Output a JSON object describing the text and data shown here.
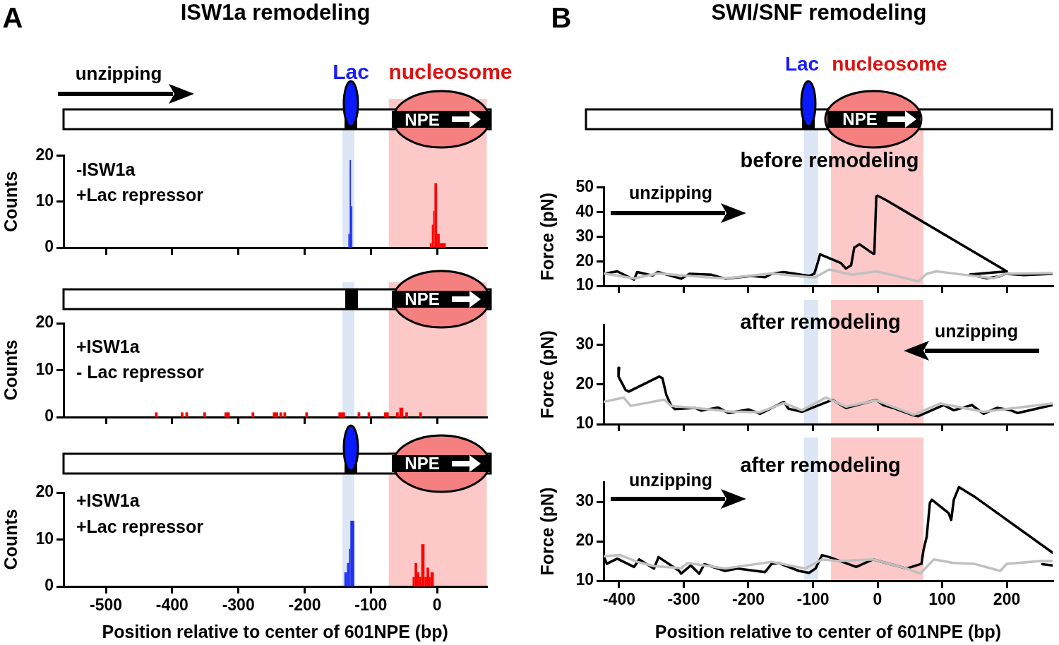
{
  "chart_data": [
    {
      "type": "histogram",
      "title": "ISW1a remodeling",
      "ylabel": "Counts",
      "annotations": [
        "A",
        "unzipping",
        "Lac",
        "nucleosome",
        "NPE",
        "-ISW1a",
        "+Lac repressor"
      ],
      "xlim": [
        -564,
        75
      ],
      "xticks": [
        -500,
        -400,
        -300,
        -200,
        -100,
        0
      ],
      "ylim": [
        0,
        20
      ],
      "yticks": [
        0,
        10,
        20
      ],
      "tick_labels": "y",
      "bands": [
        {
          "axis": "x",
          "from": -143,
          "to": -125,
          "color": "#dce6f4"
        },
        {
          "axis": "x",
          "from": -73,
          "to": 75,
          "color": "#fcc8c8"
        }
      ],
      "bins": [
        -134,
        -132,
        -130,
        -128,
        -11,
        -8,
        -6,
        -4,
        0,
        4,
        13
      ],
      "series": [
        {
          "color": "#2030f0",
          "values": [
            3,
            19,
            9,
            0,
            0,
            0,
            0,
            0,
            0,
            0
          ]
        },
        {
          "color": "#ff0000",
          "values": [
            0,
            0,
            0,
            0,
            1,
            5,
            8,
            14,
            3,
            1
          ]
        }
      ]
    },
    {
      "type": "histogram",
      "ylabel": "Counts",
      "annotations": [
        "NPE",
        "+ISW1a",
        "- Lac repressor"
      ],
      "xlim": [
        -564,
        75
      ],
      "xticks": [
        -500,
        -400,
        -300,
        -200,
        -100,
        0
      ],
      "ylim": [
        0,
        20
      ],
      "yticks": [
        0,
        10,
        20
      ],
      "tick_labels": "y",
      "bands": [
        {
          "axis": "x",
          "from": -143,
          "to": -125,
          "color": "#dce6f4"
        },
        {
          "axis": "x",
          "from": -73,
          "to": 75,
          "color": "#fcc8c8"
        }
      ],
      "bins": [
        -426,
        -422,
        -387,
        -383,
        -380,
        -376,
        -353,
        -349,
        -321,
        -313,
        -280,
        -276,
        -248,
        -240,
        -238,
        -234,
        -232,
        -228,
        -199,
        -195,
        -149,
        -139,
        -120,
        -116,
        -105,
        -101,
        -80,
        -73,
        -62,
        -58,
        -57,
        -51,
        -48,
        -44,
        -27,
        -23
      ],
      "series": [
        {
          "color": "#ff0000",
          "values": [
            1,
            0,
            1,
            0,
            1,
            0,
            1,
            0,
            1,
            0,
            1,
            0,
            1,
            0,
            1,
            0,
            1,
            0,
            1,
            0,
            1,
            0,
            1,
            0,
            1,
            0,
            1,
            0,
            1,
            0,
            2,
            0,
            1,
            0,
            1
          ]
        }
      ]
    },
    {
      "type": "histogram",
      "ylabel": "Counts",
      "xlabel": "Position relative to center of 601NPE (bp)",
      "annotations": [
        "NPE",
        "+ISW1a",
        "+Lac repressor"
      ],
      "xlim": [
        -564,
        75
      ],
      "xticks": [
        -500,
        -400,
        -300,
        -200,
        -100,
        0
      ],
      "ylim": [
        0,
        20
      ],
      "yticks": [
        0,
        10,
        20
      ],
      "bands": [
        {
          "axis": "x",
          "from": -143,
          "to": -125,
          "color": "#dce6f4"
        },
        {
          "axis": "x",
          "from": -73,
          "to": 75,
          "color": "#fcc8c8"
        }
      ],
      "bins": [
        -140,
        -136,
        -133,
        -131,
        -125,
        -37,
        -34,
        -30,
        -27,
        -24,
        -19,
        -16,
        -12,
        -10,
        -5
      ],
      "series": [
        {
          "color": "#2030f0",
          "values": [
            3,
            5,
            8,
            14,
            0,
            0,
            0,
            0,
            0,
            0,
            0,
            0,
            0,
            0
          ]
        },
        {
          "color": "#ff0000",
          "values": [
            0,
            0,
            0,
            0,
            0,
            2,
            5,
            3,
            2,
            9,
            2,
            4,
            2,
            3
          ]
        }
      ]
    },
    {
      "type": "line",
      "title": "SWI/SNF remodeling",
      "subtitle": "before remodeling",
      "ylabel": "Force (pN)",
      "annotations": [
        "B",
        "Lac",
        "nucleosome",
        "NPE",
        "unzipping"
      ],
      "xlim": [
        -424,
        271
      ],
      "xticks": [
        -400,
        -300,
        -200,
        -100,
        0,
        100,
        200
      ],
      "ylim": [
        10,
        50
      ],
      "yticks": [
        10,
        20,
        30,
        40,
        50
      ],
      "tick_labels": "y",
      "bands": [
        {
          "axis": "x",
          "from": -114,
          "to": -92,
          "color": "#dce6f4"
        },
        {
          "axis": "x",
          "from": -72,
          "to": 71,
          "color": "#fcc8c8"
        }
      ],
      "series": [
        {
          "color": "#c0c0c0",
          "x": [
            -424,
            -377,
            -340,
            -291,
            -236,
            -164,
            -106,
            -96,
            -75,
            -39,
            -2,
            29,
            63,
            76,
            91,
            143,
            180,
            198,
            271
          ],
          "values": [
            15,
            13,
            15,
            14,
            13,
            15,
            13.5,
            13.5,
            16.6,
            14.5,
            15.9,
            14,
            11.8,
            14.9,
            15.9,
            14.2,
            13.1,
            14.9,
            15.2
          ]
        },
        {
          "color": "#000000",
          "x": [
            -424,
            -403,
            -377,
            -372,
            -348,
            -340,
            -304,
            -291,
            -257,
            -236,
            -195,
            -174,
            -164,
            -145,
            -106,
            -98,
            -93,
            -89,
            -57,
            -49,
            -41,
            -36,
            -28,
            -7,
            -5,
            -2,
            0,
            13,
            200,
            143,
            169,
            188,
            198,
            227,
            271
          ],
          "values": [
            14.9,
            15.9,
            12.5,
            15.6,
            14.2,
            15.6,
            12.9,
            14.9,
            14.5,
            12.9,
            14,
            13.5,
            14.9,
            15.6,
            14,
            14.9,
            19,
            22.8,
            19.3,
            17,
            18.3,
            25.6,
            26.9,
            23.1,
            23.1,
            46.3,
            46.7,
            44.9,
            15.9,
            14.6,
            13.1,
            13.8,
            14.9,
            14.4,
            14.9
          ]
        }
      ]
    },
    {
      "type": "line",
      "subtitle": "after remodeling",
      "ylabel": "Force (pN)",
      "annotations": [
        "unzipping"
      ],
      "xlim": [
        -424,
        271
      ],
      "xticks": [
        -400,
        -300,
        -200,
        -100,
        0,
        100,
        200
      ],
      "ylim": [
        10,
        35
      ],
      "yticks": [
        10,
        20,
        30
      ],
      "tick_labels": "y",
      "bands": [
        {
          "axis": "x",
          "from": -114,
          "to": -92,
          "color": "#dce6f4"
        },
        {
          "axis": "x",
          "from": -72,
          "to": 71,
          "color": "#fcc8c8"
        }
      ],
      "series": [
        {
          "color": "#c0c0c0",
          "x": [
            -424,
            -393,
            -382,
            -330,
            -320,
            -283,
            -231,
            -182,
            -145,
            -117,
            -80,
            -49,
            -2,
            56,
            97,
            164,
            271
          ],
          "values": [
            15.6,
            16.7,
            14.6,
            16.2,
            14.6,
            14.1,
            13.2,
            13,
            15.3,
            13.5,
            16.7,
            14.4,
            16,
            12.4,
            15.2,
            13.1,
            15.2
          ]
        },
        {
          "color": "#000000",
          "x": [
            -400,
            -401,
            -390,
            -385,
            -338,
            -333,
            -327,
            -320,
            -314,
            -283,
            -273,
            -247,
            -231,
            -200,
            -182,
            -145,
            -138,
            -117,
            -70,
            -49,
            -2,
            9,
            24,
            56,
            63,
            102,
            118,
            146,
            164,
            185,
            206,
            217,
            271
          ],
          "values": [
            24.2,
            22,
            18.6,
            18.2,
            22,
            21.6,
            17.4,
            14.8,
            13.8,
            14.1,
            13.4,
            14.2,
            12.8,
            13.7,
            12.6,
            15.6,
            13.9,
            13.1,
            16.1,
            14.1,
            16.1,
            14.8,
            14.1,
            12.2,
            12,
            14.8,
            13.5,
            14.8,
            12.6,
            14.1,
            13.5,
            12.8,
            14.8
          ]
        }
      ]
    },
    {
      "type": "line",
      "subtitle": "after remodeling",
      "ylabel": "Force (pN)",
      "xlabel": "Position relative to center of 601NPE (bp)",
      "annotations": [
        "unzipping"
      ],
      "xlim": [
        -424,
        271
      ],
      "xticks": [
        -400,
        -300,
        -200,
        -100,
        0,
        100,
        200
      ],
      "ylim": [
        10,
        35
      ],
      "yticks": [
        10,
        20,
        30
      ],
      "bands": [
        {
          "axis": "x",
          "from": -114,
          "to": -92,
          "color": "#dce6f4"
        },
        {
          "axis": "x",
          "from": -72,
          "to": 71,
          "color": "#fcc8c8"
        }
      ],
      "series": [
        {
          "color": "#c0c0c0",
          "x": [
            -424,
            -398,
            -372,
            -346,
            -304,
            -294,
            -236,
            -164,
            -112,
            -86,
            -60,
            -7,
            45,
            66,
            87,
            118,
            149,
            190,
            200,
            253,
            271
          ],
          "values": [
            16.2,
            16.5,
            14.8,
            13.7,
            13.2,
            14.5,
            13.1,
            14.8,
            13.1,
            15.4,
            15,
            15.4,
            13.1,
            11.8,
            15.4,
            14.5,
            14.3,
            12.5,
            14.3,
            15,
            15
          ]
        },
        {
          "color": "#000000",
          "x": [
            -424,
            -419,
            -403,
            -377,
            -369,
            -346,
            -339,
            -307,
            -304,
            -289,
            -276,
            -268,
            -236,
            -216,
            -174,
            -164,
            -153,
            -122,
            -106,
            -96,
            -86,
            -75,
            -33,
            -7,
            45,
            68,
            71,
            76,
            81,
            84,
            110,
            114,
            118,
            126,
            149,
            271,
            263,
            255,
            271
          ],
          "values": [
            16.2,
            14.3,
            15.6,
            13.5,
            15.4,
            13.1,
            16,
            12.5,
            11.8,
            13.9,
            11.8,
            14.2,
            12.5,
            13.1,
            12.2,
            14.3,
            14.5,
            12.5,
            12,
            13.1,
            16.5,
            16,
            13.5,
            15.4,
            13.1,
            14.3,
            17.7,
            21.1,
            29.7,
            30.5,
            27.1,
            25.4,
            30.5,
            33.7,
            31.4,
            17.1,
            null,
            14.2,
            13.9
          ]
        }
      ]
    }
  ]
}
